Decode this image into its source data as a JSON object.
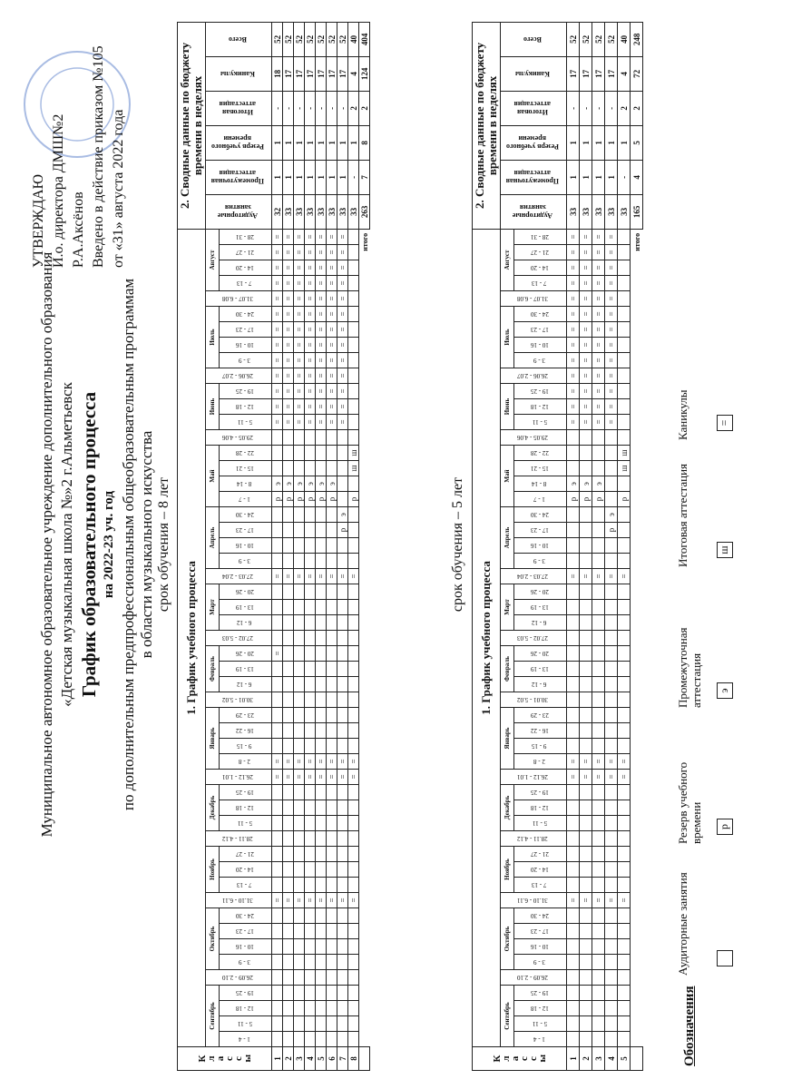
{
  "header": {
    "org_line1": "Муниципальное автономное образовательное учреждение дополнительного образования",
    "org_line2": "«Детская  музыкальная школа №»2 г.Альметьевск",
    "title": "График образовательного процесса",
    "year": "на 2022-23 уч. год",
    "program_line1": "по дополнительным предпрофессиональным общеобразовательным программам",
    "program_line2": "в области музыкального искусства"
  },
  "approval": {
    "lines": [
      "УТВЕРЖДАЮ",
      "И.о. директора ДМШ№2",
      "Р.А.Аксёнов",
      "Введено в действие приказом №105",
      "от «31» августа 2022 года"
    ]
  },
  "schedule_title": "1. График учебного процесса",
  "summary_title": "2. Сводные данные по бюджету времени в неделях",
  "class_header": "Классы",
  "total_label": "итого",
  "summary_headers": [
    "Аудиторные занятия",
    "Промежуточная аттестация",
    "Резерв учебного времени",
    "Итоговая аттестация",
    "Каникулы",
    "Всего"
  ],
  "columns": [
    {
      "month": "Сентябрь",
      "weeks": [
        "1 - 4",
        "5 - 11",
        "12 - 18",
        "19 - 25"
      ]
    },
    {
      "week": "26.09 - 2.10"
    },
    {
      "month": "Октябрь",
      "weeks": [
        "3 - 9",
        "10 - 16",
        "17 - 23",
        "24 - 30"
      ]
    },
    {
      "week": "31.10 - 6.11"
    },
    {
      "month": "Ноябрь",
      "weeks": [
        "7 - 13",
        "14 - 20",
        "21 - 27"
      ]
    },
    {
      "week": "28.11 - 4.12"
    },
    {
      "month": "Декабрь",
      "weeks": [
        "5 - 11",
        "12 - 18",
        "19 - 25"
      ]
    },
    {
      "week": "26.12 - 1.01"
    },
    {
      "month": "Январь",
      "weeks": [
        "2 - 8",
        "9 - 15",
        "16 - 22",
        "23 - 29"
      ]
    },
    {
      "week": "30.01 - 5.02"
    },
    {
      "month": "Февраль",
      "weeks": [
        "6 - 12",
        "13 - 19",
        "20 - 26"
      ]
    },
    {
      "week": "27.02 - 5.03"
    },
    {
      "month": "Март",
      "weeks": [
        "6 - 12",
        "13 - 19",
        "20 - 26"
      ]
    },
    {
      "week": "27.03 - 2.04"
    },
    {
      "month": "Апрель",
      "weeks": [
        "3 - 9",
        "10 - 16",
        "17 - 23",
        "24 - 30"
      ]
    },
    {
      "month": "Май",
      "weeks": [
        "1 - 7",
        "8 - 14",
        "15 - 21",
        "22 - 28"
      ]
    },
    {
      "week": "29.05 - 4.06"
    },
    {
      "month": "Июнь",
      "weeks": [
        "5 - 11",
        "12 - 18",
        "19 - 25"
      ]
    },
    {
      "week": "26.06 - 2.07"
    },
    {
      "month": "Июль",
      "weeks": [
        "3 - 9",
        "10 - 16",
        "17 - 23",
        "24 - 30"
      ]
    },
    {
      "week": "31.07 - 6.08"
    },
    {
      "month": "Август",
      "weeks": [
        "7 - 13",
        "14 - 20",
        "21 - 27",
        "28 - 31"
      ]
    }
  ],
  "tables": [
    {
      "duration": "срок обучения – 8 лет",
      "rows": [
        {
          "class": 1,
          "cells": [
            null,
            null,
            null,
            null,
            null,
            null,
            null,
            null,
            null,
            "=",
            null,
            null,
            null,
            null,
            null,
            null,
            null,
            "=",
            "=",
            null,
            null,
            null,
            null,
            null,
            null,
            "=",
            null,
            null,
            null,
            null,
            "=",
            null,
            null,
            null,
            null,
            "р",
            "э",
            null,
            null,
            null,
            "=",
            "=",
            "=",
            "=",
            "=",
            "=",
            "=",
            "=",
            "=",
            "=",
            "=",
            "=",
            "="
          ],
          "summary": [
            32,
            1,
            1,
            "-",
            18,
            52
          ]
        },
        {
          "class": 2,
          "cells": [
            null,
            null,
            null,
            null,
            null,
            null,
            null,
            null,
            null,
            "=",
            null,
            null,
            null,
            null,
            null,
            null,
            null,
            "=",
            "=",
            null,
            null,
            null,
            null,
            null,
            null,
            null,
            null,
            null,
            null,
            null,
            "=",
            null,
            null,
            null,
            null,
            "р",
            "э",
            null,
            null,
            null,
            "=",
            "=",
            "=",
            "=",
            "=",
            "=",
            "=",
            "=",
            "=",
            "=",
            "=",
            "=",
            "="
          ],
          "summary": [
            33,
            1,
            1,
            "-",
            17,
            52
          ]
        },
        {
          "class": 3,
          "cells": [
            null,
            null,
            null,
            null,
            null,
            null,
            null,
            null,
            null,
            "=",
            null,
            null,
            null,
            null,
            null,
            null,
            null,
            "=",
            "=",
            null,
            null,
            null,
            null,
            null,
            null,
            null,
            null,
            null,
            null,
            null,
            "=",
            null,
            null,
            null,
            null,
            "р",
            "э",
            null,
            null,
            null,
            "=",
            "=",
            "=",
            "=",
            "=",
            "=",
            "=",
            "=",
            "=",
            "=",
            "=",
            "=",
            "="
          ],
          "summary": [
            33,
            1,
            1,
            "-",
            17,
            52
          ]
        },
        {
          "class": 4,
          "cells": [
            null,
            null,
            null,
            null,
            null,
            null,
            null,
            null,
            null,
            "=",
            null,
            null,
            null,
            null,
            null,
            null,
            null,
            "=",
            "=",
            null,
            null,
            null,
            null,
            null,
            null,
            null,
            null,
            null,
            null,
            null,
            "=",
            null,
            null,
            null,
            null,
            "р",
            "э",
            null,
            null,
            null,
            "=",
            "=",
            "=",
            "=",
            "=",
            "=",
            "=",
            "=",
            "=",
            "=",
            "=",
            "=",
            "="
          ],
          "summary": [
            33,
            1,
            1,
            "-",
            17,
            52
          ]
        },
        {
          "class": 5,
          "cells": [
            null,
            null,
            null,
            null,
            null,
            null,
            null,
            null,
            null,
            "=",
            null,
            null,
            null,
            null,
            null,
            null,
            null,
            "=",
            "=",
            null,
            null,
            null,
            null,
            null,
            null,
            null,
            null,
            null,
            null,
            null,
            "=",
            null,
            null,
            null,
            null,
            "р",
            "э",
            null,
            null,
            null,
            "=",
            "=",
            "=",
            "=",
            "=",
            "=",
            "=",
            "=",
            "=",
            "=",
            "=",
            "=",
            "="
          ],
          "summary": [
            33,
            1,
            1,
            "-",
            17,
            52
          ]
        },
        {
          "class": 6,
          "cells": [
            null,
            null,
            null,
            null,
            null,
            null,
            null,
            null,
            null,
            "=",
            null,
            null,
            null,
            null,
            null,
            null,
            null,
            "=",
            "=",
            null,
            null,
            null,
            null,
            null,
            null,
            null,
            null,
            null,
            null,
            null,
            "=",
            null,
            null,
            null,
            null,
            "р",
            "э",
            null,
            null,
            null,
            "=",
            "=",
            "=",
            "=",
            "=",
            "=",
            "=",
            "=",
            "=",
            "=",
            "=",
            "=",
            "="
          ],
          "summary": [
            33,
            1,
            1,
            "-",
            17,
            52
          ]
        },
        {
          "class": 7,
          "cells": [
            null,
            null,
            null,
            null,
            null,
            null,
            null,
            null,
            null,
            "=",
            null,
            null,
            null,
            null,
            null,
            null,
            null,
            "=",
            "=",
            null,
            null,
            null,
            null,
            null,
            null,
            null,
            null,
            null,
            null,
            null,
            "=",
            null,
            null,
            "р",
            "э",
            null,
            null,
            null,
            null,
            null,
            "=",
            "=",
            "=",
            "=",
            "=",
            "=",
            "=",
            "=",
            "=",
            "=",
            "=",
            "=",
            "="
          ],
          "summary": [
            33,
            1,
            1,
            "-",
            17,
            52
          ]
        },
        {
          "class": 8,
          "cells": [
            null,
            null,
            null,
            null,
            null,
            null,
            null,
            null,
            null,
            "=",
            null,
            null,
            null,
            null,
            null,
            null,
            null,
            "=",
            "=",
            null,
            null,
            null,
            null,
            null,
            null,
            null,
            null,
            null,
            null,
            null,
            "=",
            null,
            null,
            null,
            null,
            "р",
            null,
            "ш",
            "ш",
            null,
            null,
            null,
            null,
            null,
            null,
            null,
            null,
            null,
            null,
            null,
            null,
            null,
            null
          ],
          "summary": [
            33,
            "-",
            1,
            2,
            4,
            40
          ]
        }
      ],
      "totals": [
        263,
        7,
        8,
        2,
        124,
        404
      ]
    },
    {
      "duration": "срок обучения – 5 лет",
      "rows": [
        {
          "class": 1,
          "cells": [
            null,
            null,
            null,
            null,
            null,
            null,
            null,
            null,
            null,
            "=",
            null,
            null,
            null,
            null,
            null,
            null,
            null,
            "=",
            "=",
            null,
            null,
            null,
            null,
            null,
            null,
            null,
            null,
            null,
            null,
            null,
            "=",
            null,
            null,
            null,
            null,
            "р",
            "э",
            null,
            null,
            null,
            "=",
            "=",
            "=",
            "=",
            "=",
            "=",
            "=",
            "=",
            "=",
            "=",
            "=",
            "=",
            "="
          ],
          "summary": [
            33,
            1,
            1,
            "-",
            17,
            52
          ]
        },
        {
          "class": 2,
          "cells": [
            null,
            null,
            null,
            null,
            null,
            null,
            null,
            null,
            null,
            "=",
            null,
            null,
            null,
            null,
            null,
            null,
            null,
            "=",
            "=",
            null,
            null,
            null,
            null,
            null,
            null,
            null,
            null,
            null,
            null,
            null,
            "=",
            null,
            null,
            null,
            null,
            "р",
            "э",
            null,
            null,
            null,
            "=",
            "=",
            "=",
            "=",
            "=",
            "=",
            "=",
            "=",
            "=",
            "=",
            "=",
            "=",
            "="
          ],
          "summary": [
            33,
            1,
            1,
            "-",
            17,
            52
          ]
        },
        {
          "class": 3,
          "cells": [
            null,
            null,
            null,
            null,
            null,
            null,
            null,
            null,
            null,
            "=",
            null,
            null,
            null,
            null,
            null,
            null,
            null,
            "=",
            "=",
            null,
            null,
            null,
            null,
            null,
            null,
            null,
            null,
            null,
            null,
            null,
            "=",
            null,
            null,
            null,
            null,
            "р",
            "э",
            null,
            null,
            null,
            "=",
            "=",
            "=",
            "=",
            "=",
            "=",
            "=",
            "=",
            "=",
            "=",
            "=",
            "=",
            "="
          ],
          "summary": [
            33,
            1,
            1,
            "-",
            17,
            52
          ]
        },
        {
          "class": 4,
          "cells": [
            null,
            null,
            null,
            null,
            null,
            null,
            null,
            null,
            null,
            "=",
            null,
            null,
            null,
            null,
            null,
            null,
            null,
            "=",
            "=",
            null,
            null,
            null,
            null,
            null,
            null,
            null,
            null,
            null,
            null,
            null,
            "=",
            null,
            null,
            "р",
            "э",
            null,
            null,
            null,
            null,
            null,
            "=",
            "=",
            "=",
            "=",
            "=",
            "=",
            "=",
            "=",
            "=",
            "=",
            "=",
            "=",
            "="
          ],
          "summary": [
            33,
            1,
            1,
            "-",
            17,
            52
          ]
        },
        {
          "class": 5,
          "cells": [
            null,
            null,
            null,
            null,
            null,
            null,
            null,
            null,
            null,
            "=",
            null,
            null,
            null,
            null,
            null,
            null,
            null,
            "=",
            "=",
            null,
            null,
            null,
            null,
            null,
            null,
            null,
            null,
            null,
            null,
            null,
            "=",
            null,
            null,
            null,
            null,
            "р",
            null,
            "ш",
            "ш",
            null,
            null,
            null,
            null,
            null,
            null,
            null,
            null,
            null,
            null,
            null,
            null,
            null,
            null
          ],
          "summary": [
            33,
            "-",
            1,
            2,
            4,
            40
          ]
        }
      ],
      "totals": [
        165,
        4,
        5,
        2,
        72,
        248
      ]
    }
  ],
  "legend": {
    "title": "Обозначения",
    "items": [
      {
        "label": "Аудиторные занятия"
      },
      {
        "symbol": "р",
        "label": "Резерв учебного времени"
      },
      {
        "symbol": "э",
        "label": "Промежуточная аттестация"
      },
      {
        "symbol": "ш",
        "label": "Итоговая аттестация"
      },
      {
        "symbol": "=",
        "label": "Каникулы"
      }
    ]
  }
}
